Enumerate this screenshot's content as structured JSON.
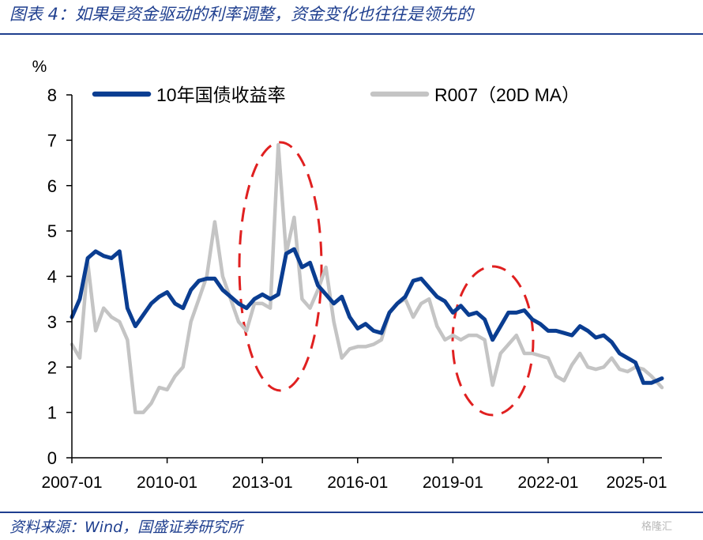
{
  "figure_title": "图表 4：如果是资金驱动的利率调整，资金变化也往往是领先的",
  "source_note": "资料来源：Wind，国盛证券研究所",
  "watermark": "格隆汇",
  "colors": {
    "bond": "#0a3d91",
    "repo": "#c4c4c4",
    "annotation": "#e02020",
    "brand": "#1f3f8f"
  },
  "chart_data": {
    "type": "line",
    "y_unit": "%",
    "ylim": [
      0,
      8
    ],
    "y_ticks": [
      "0",
      "1",
      "2",
      "3",
      "4",
      "5",
      "6",
      "7",
      "8"
    ],
    "x_range": [
      "2007-01",
      "2025-08"
    ],
    "x_ticks": [
      "2007-01",
      "2010-01",
      "2013-01",
      "2016-01",
      "2019-01",
      "2022-01",
      "2025-01"
    ],
    "legend_position": "top",
    "grid": false,
    "series": [
      {
        "name": "10年国债收益率",
        "color": "#0a3d91",
        "x": [
          "2007-01",
          "2007-04",
          "2007-07",
          "2007-10",
          "2008-01",
          "2008-04",
          "2008-07",
          "2008-10",
          "2009-01",
          "2009-04",
          "2009-07",
          "2009-10",
          "2010-01",
          "2010-04",
          "2010-07",
          "2010-10",
          "2011-01",
          "2011-04",
          "2011-07",
          "2011-10",
          "2012-01",
          "2012-04",
          "2012-07",
          "2012-10",
          "2013-01",
          "2013-04",
          "2013-07",
          "2013-10",
          "2014-01",
          "2014-04",
          "2014-07",
          "2014-10",
          "2015-01",
          "2015-04",
          "2015-07",
          "2015-10",
          "2016-01",
          "2016-04",
          "2016-07",
          "2016-10",
          "2017-01",
          "2017-04",
          "2017-07",
          "2017-10",
          "2018-01",
          "2018-04",
          "2018-07",
          "2018-10",
          "2019-01",
          "2019-04",
          "2019-07",
          "2019-10",
          "2020-01",
          "2020-04",
          "2020-07",
          "2020-10",
          "2021-01",
          "2021-04",
          "2021-07",
          "2021-10",
          "2022-01",
          "2022-04",
          "2022-07",
          "2022-10",
          "2023-01",
          "2023-04",
          "2023-07",
          "2023-10",
          "2024-01",
          "2024-04",
          "2024-07",
          "2024-10",
          "2025-01",
          "2025-04",
          "2025-08"
        ],
        "y": [
          3.1,
          3.5,
          4.4,
          4.55,
          4.45,
          4.4,
          4.55,
          3.3,
          2.9,
          3.15,
          3.4,
          3.55,
          3.65,
          3.4,
          3.3,
          3.7,
          3.9,
          3.95,
          3.95,
          3.7,
          3.55,
          3.4,
          3.3,
          3.5,
          3.6,
          3.5,
          3.6,
          4.5,
          4.6,
          4.2,
          4.3,
          3.8,
          3.6,
          3.4,
          3.55,
          3.1,
          2.85,
          2.95,
          2.8,
          2.75,
          3.2,
          3.4,
          3.55,
          3.9,
          3.95,
          3.75,
          3.55,
          3.45,
          3.2,
          3.35,
          3.15,
          3.2,
          3.05,
          2.6,
          2.9,
          3.2,
          3.2,
          3.25,
          3.05,
          2.95,
          2.8,
          2.8,
          2.75,
          2.7,
          2.9,
          2.8,
          2.65,
          2.7,
          2.55,
          2.3,
          2.2,
          2.1,
          1.65,
          1.65,
          1.75
        ]
      },
      {
        "name": "R007（20D MA）",
        "color": "#c4c4c4",
        "x": [
          "2007-01",
          "2007-04",
          "2007-07",
          "2007-10",
          "2008-01",
          "2008-04",
          "2008-07",
          "2008-10",
          "2009-01",
          "2009-04",
          "2009-07",
          "2009-10",
          "2010-01",
          "2010-04",
          "2010-07",
          "2010-10",
          "2011-01",
          "2011-04",
          "2011-07",
          "2011-10",
          "2012-01",
          "2012-04",
          "2012-07",
          "2012-10",
          "2013-01",
          "2013-04",
          "2013-07",
          "2013-10",
          "2014-01",
          "2014-04",
          "2014-07",
          "2014-10",
          "2015-01",
          "2015-04",
          "2015-07",
          "2015-10",
          "2016-01",
          "2016-04",
          "2016-07",
          "2016-10",
          "2017-01",
          "2017-04",
          "2017-07",
          "2017-10",
          "2018-01",
          "2018-04",
          "2018-07",
          "2018-10",
          "2019-01",
          "2019-04",
          "2019-07",
          "2019-10",
          "2020-01",
          "2020-04",
          "2020-07",
          "2020-10",
          "2021-01",
          "2021-04",
          "2021-07",
          "2021-10",
          "2022-01",
          "2022-04",
          "2022-07",
          "2022-10",
          "2023-01",
          "2023-04",
          "2023-07",
          "2023-10",
          "2024-01",
          "2024-04",
          "2024-07",
          "2024-10",
          "2025-01",
          "2025-04",
          "2025-08"
        ],
        "y": [
          2.5,
          2.2,
          4.3,
          2.8,
          3.3,
          3.1,
          3.0,
          2.6,
          1.0,
          1.0,
          1.2,
          1.55,
          1.5,
          1.8,
          2.0,
          3.0,
          3.5,
          4.0,
          5.2,
          4.0,
          3.5,
          3.0,
          2.8,
          3.4,
          3.4,
          3.3,
          6.9,
          4.5,
          5.3,
          3.5,
          3.3,
          3.7,
          4.2,
          3.0,
          2.2,
          2.4,
          2.45,
          2.45,
          2.5,
          2.6,
          3.2,
          3.4,
          3.5,
          3.1,
          3.4,
          3.5,
          2.9,
          2.6,
          2.7,
          2.6,
          2.7,
          2.7,
          2.6,
          1.6,
          2.3,
          2.5,
          2.7,
          2.3,
          2.3,
          2.25,
          2.2,
          1.8,
          1.7,
          2.05,
          2.3,
          2.0,
          1.95,
          2.0,
          2.2,
          1.95,
          1.9,
          2.0,
          1.95,
          1.8,
          1.55
        ]
      }
    ]
  }
}
